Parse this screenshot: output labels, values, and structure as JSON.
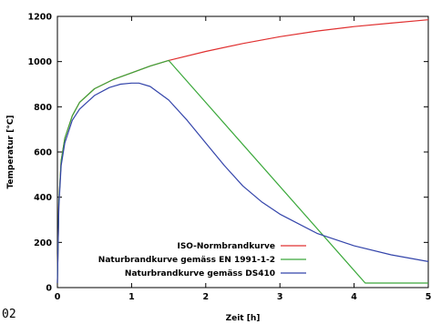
{
  "chart_data": {
    "type": "line",
    "xlabel": "Zeit [h]",
    "ylabel": "Temperatur [°C]",
    "xlim": [
      0,
      5
    ],
    "ylim": [
      0,
      1200
    ],
    "xticks": [
      0,
      1,
      2,
      3,
      4,
      5
    ],
    "yticks": [
      0,
      200,
      400,
      600,
      800,
      1000,
      1200
    ],
    "grid": false,
    "legend_position": "bottom-right",
    "series": [
      {
        "name": "ISO-Normbrandkurve",
        "color": "#e03030",
        "x": [
          0,
          0.02,
          0.05,
          0.1,
          0.2,
          0.3,
          0.5,
          0.75,
          1.0,
          1.25,
          1.5,
          2.0,
          2.5,
          3.0,
          3.5,
          4.0,
          4.5,
          5.0
        ],
        "y": [
          20,
          380,
          560,
          660,
          760,
          820,
          880,
          920,
          950,
          980,
          1005,
          1045,
          1080,
          1110,
          1135,
          1155,
          1170,
          1185
        ]
      },
      {
        "name": "Naturbrandkurve gemäss EN 1991-1-2",
        "color": "#3aa83a",
        "x": [
          0,
          0.02,
          0.05,
          0.1,
          0.2,
          0.3,
          0.5,
          0.75,
          1.0,
          1.25,
          1.5,
          4.15,
          5.0
        ],
        "y": [
          20,
          380,
          560,
          660,
          760,
          820,
          880,
          920,
          950,
          980,
          1005,
          20,
          20
        ]
      },
      {
        "name": "Naturbrandkurve gemäss DS410",
        "color": "#3344aa",
        "x": [
          0,
          0.02,
          0.05,
          0.1,
          0.2,
          0.3,
          0.5,
          0.7,
          0.85,
          1.0,
          1.1,
          1.25,
          1.5,
          1.75,
          2.0,
          2.25,
          2.5,
          2.75,
          3.0,
          3.5,
          4.0,
          4.5,
          5.0
        ],
        "y": [
          20,
          360,
          540,
          640,
          740,
          790,
          850,
          885,
          900,
          905,
          905,
          890,
          830,
          740,
          640,
          540,
          450,
          380,
          325,
          240,
          185,
          145,
          115
        ]
      }
    ]
  },
  "corner_text": "02"
}
